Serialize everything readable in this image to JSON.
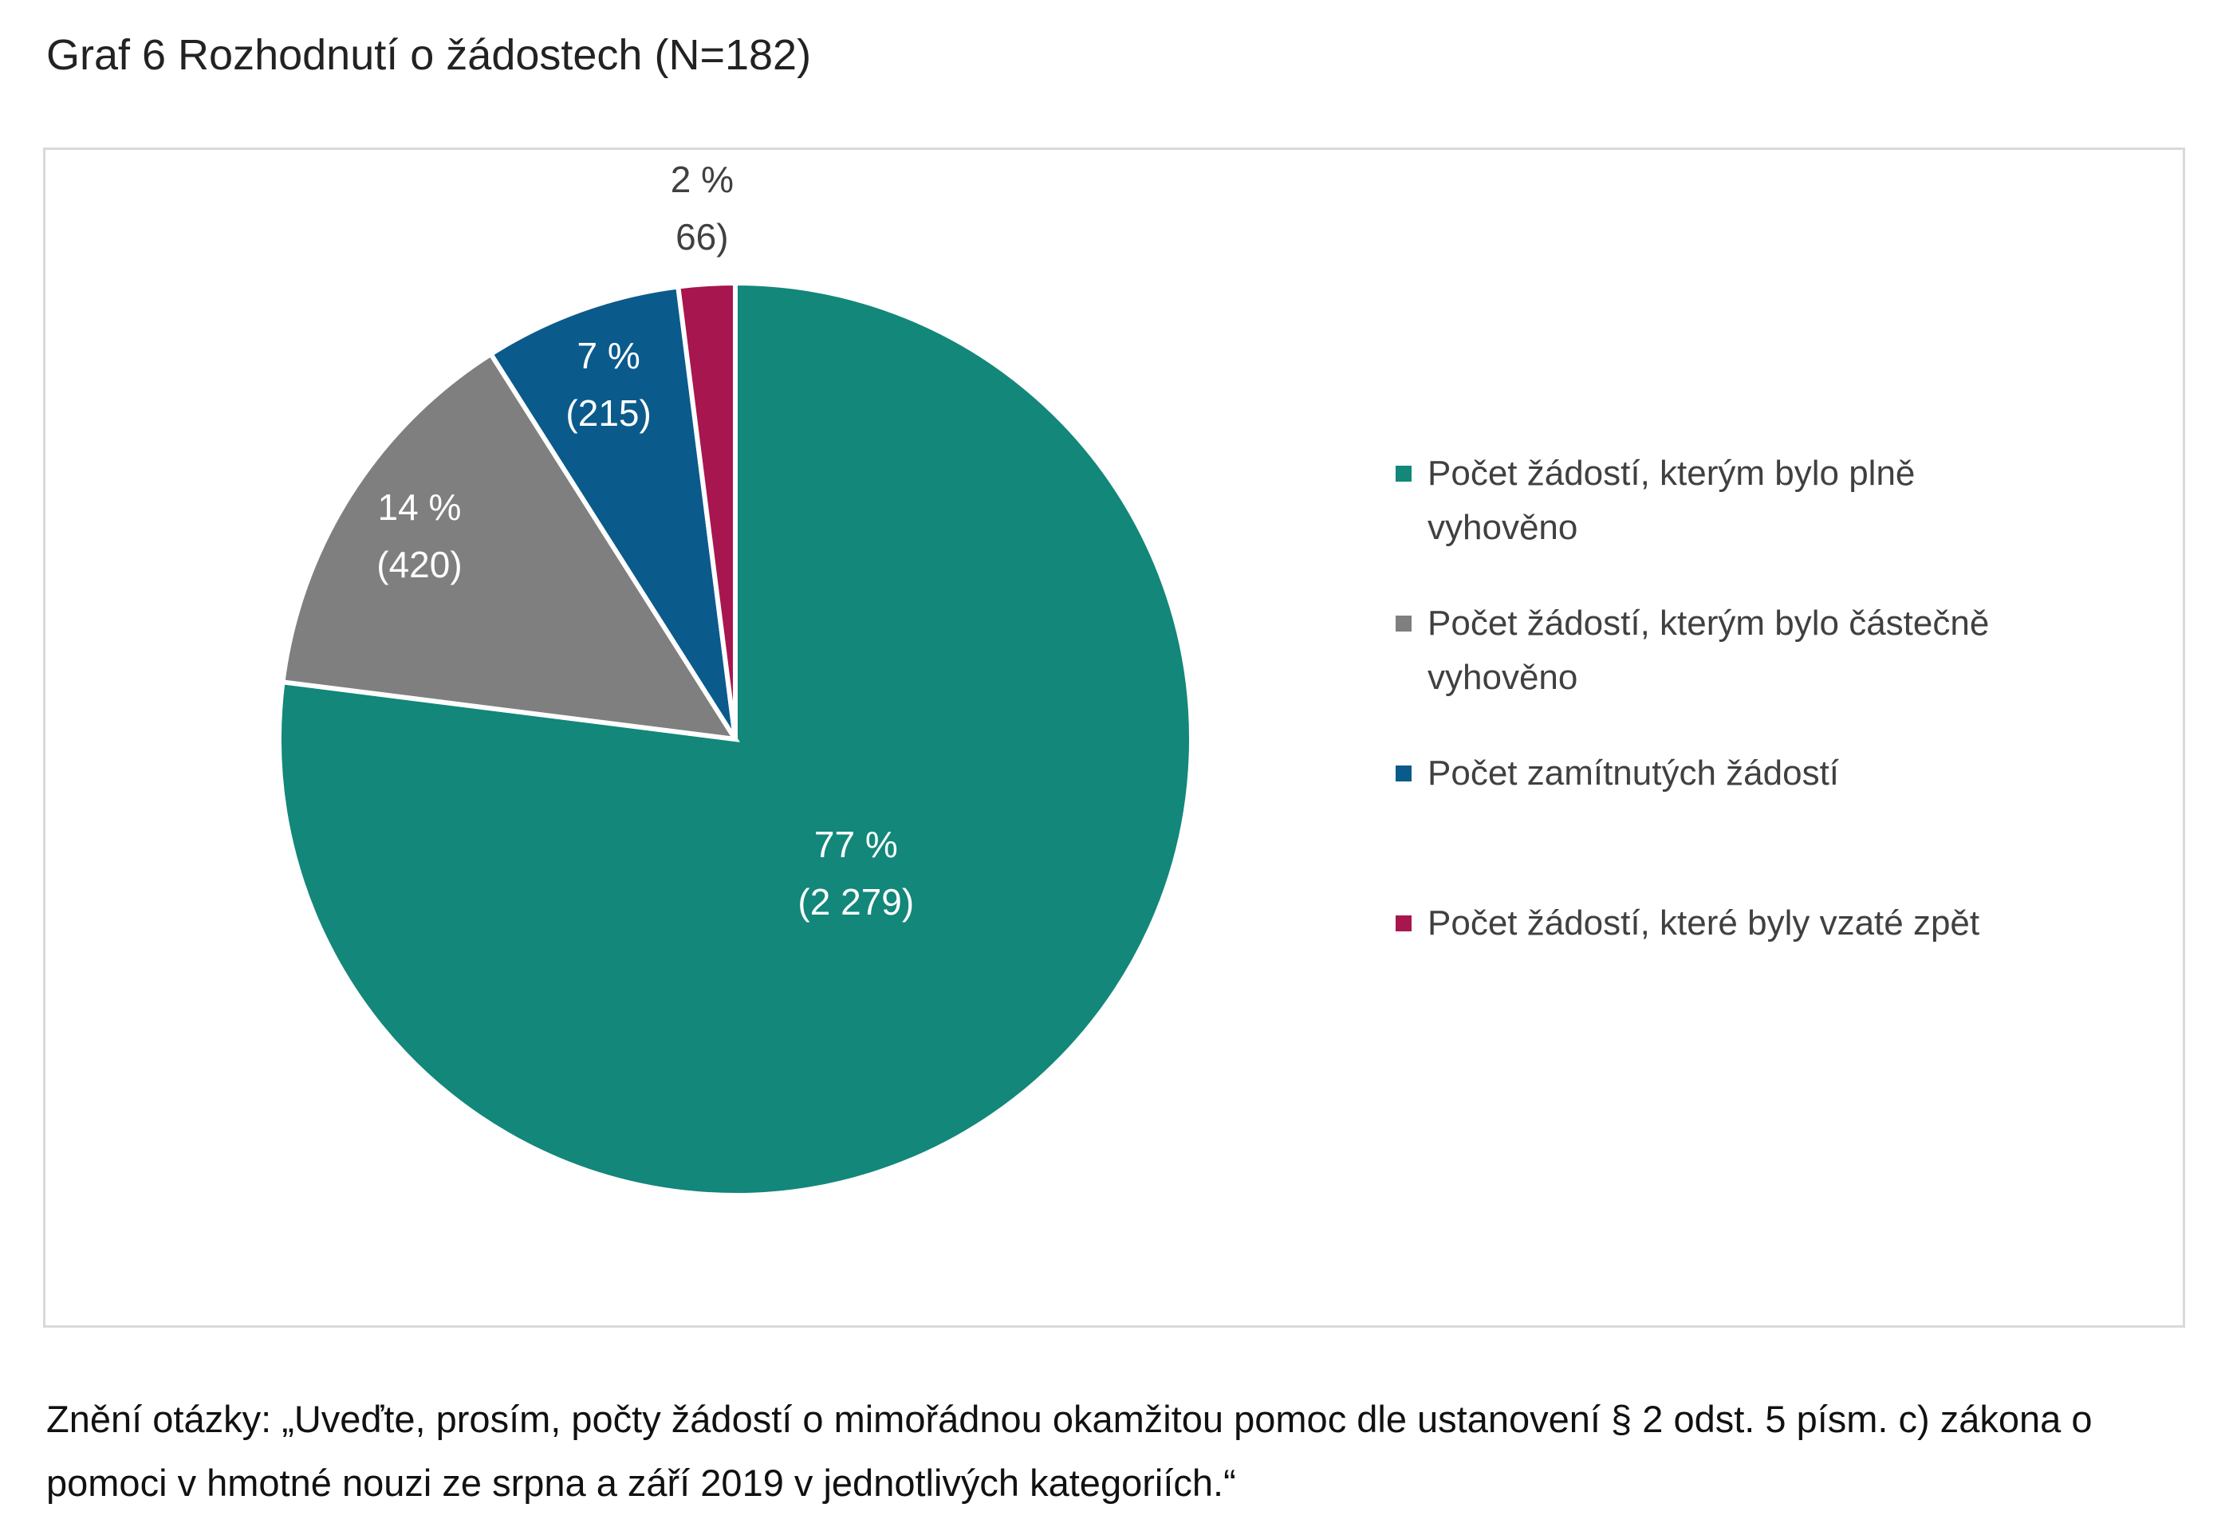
{
  "chart_data": {
    "type": "pie",
    "title": "Graf 6 Rozhodnutí o žádostech (N=182)",
    "categories": [
      "Počet žádostí, kterým bylo plně vyhověno",
      "Počet žádostí, kterým bylo částečně vyhověno",
      "Počet zamítnutých žádostí",
      "Počet žádostí, které byly vzaté zpět"
    ],
    "values": [
      77,
      14,
      7,
      2
    ],
    "value_labels": [
      "77 %",
      "14 %",
      "7 %",
      "2 %"
    ],
    "count_labels": [
      "(2 279)",
      "(420)",
      "(215)",
      "66)"
    ],
    "colors": [
      "#12877a",
      "#7f7f7f",
      "#0b5a8c",
      "#a8164f"
    ],
    "legend": "right",
    "note": "Znění otázky: „Uveďte, prosím, počty žádostí o mimořádnou okamžitou pomoc dle ustanovení § 2 odst. 5 písm. c) zákona o pomoci v hmotné nouzi ze srpna a září 2019 v jednotlivých kategoriích.“"
  }
}
